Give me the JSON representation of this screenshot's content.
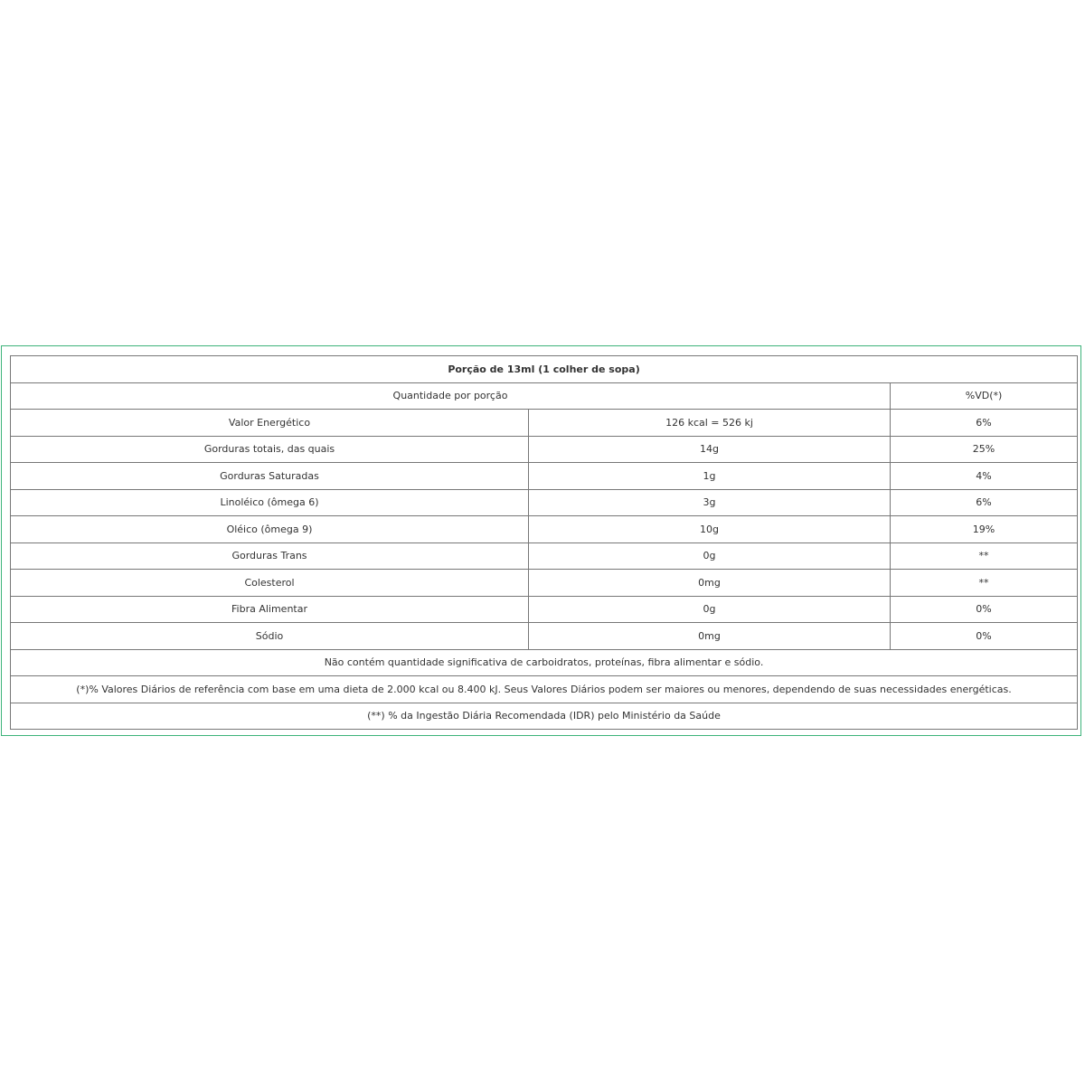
{
  "title": "Porção de 13ml (1 colher de sopa)",
  "header": {
    "quantity": "Quantidade por porção",
    "vd": "%VD(*)"
  },
  "rows": [
    {
      "name": "Valor Energético",
      "amount": "126 kcal = 526 kj",
      "vd": "6%"
    },
    {
      "name": "Gorduras totais, das quais",
      "amount": "14g",
      "vd": "25%"
    },
    {
      "name": "Gorduras Saturadas",
      "amount": "1g",
      "vd": "4%"
    },
    {
      "name": "Linoléico (ômega 6)",
      "amount": "3g",
      "vd": "6%"
    },
    {
      "name": "Oléico (ômega 9)",
      "amount": "10g",
      "vd": "19%"
    },
    {
      "name": "Gorduras Trans",
      "amount": "0g",
      "vd": "**"
    },
    {
      "name": "Colesterol",
      "amount": "0mg",
      "vd": "**"
    },
    {
      "name": "Fibra Alimentar",
      "amount": "0g",
      "vd": "0%"
    },
    {
      "name": "Sódio",
      "amount": "0mg",
      "vd": "0%"
    }
  ],
  "notes": [
    "Não contém quantidade significativa de carboidratos, proteínas, fibra alimentar e sódio.",
    "(*)% Valores Diários de referência com base em uma dieta de 2.000 kcal ou 8.400 kJ. Seus Valores Diários podem ser maiores ou menores, dependendo de suas necessidades energéticas.",
    "(**) % da Ingestão Diária Recomendada (IDR) pelo Ministério da Saúde"
  ],
  "colors": {
    "frame_border": "#3db37a",
    "table_border": "#777777"
  }
}
